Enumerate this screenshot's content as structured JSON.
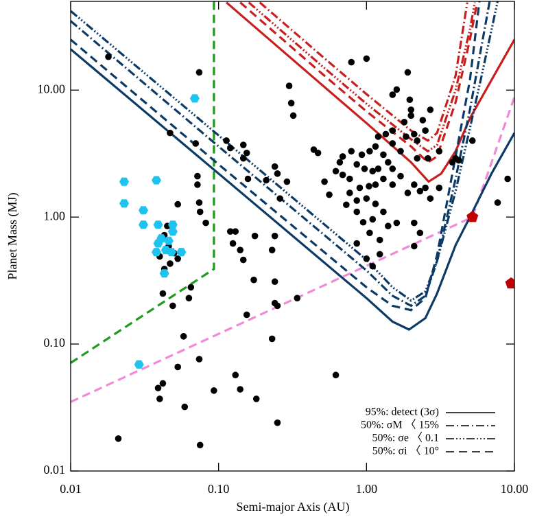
{
  "chart_data": {
    "type": "scatter",
    "x_label": "Semi-major Axis (AU)",
    "y_label": "Planet Mass (MJ)",
    "xlog": true,
    "ylog": true,
    "xlim": [
      0.01,
      10
    ],
    "ylim": [
      0.01,
      50
    ],
    "xticks": [
      0.01,
      {
        "value": 0.1,
        "label": "0.10"
      },
      {
        "value": 1,
        "label": "1.00"
      },
      {
        "value": 10,
        "label": "10.00"
      }
    ],
    "yticks": [
      0.01,
      {
        "value": 0.1,
        "label": "0.10"
      },
      {
        "value": 1,
        "label": "1.00"
      },
      {
        "value": 10,
        "label": "10.00"
      }
    ],
    "legend": "lower right",
    "series": [
      {
        "type": "line",
        "color": "#f08ad8",
        "style": "dashed",
        "x": [
          0.01,
          5.2,
          10
        ],
        "values": [
          0.035,
          1.0,
          8.8
        ]
      },
      {
        "type": "line",
        "color": "#1e9a1e",
        "style": "dashed",
        "x": [
          0.01,
          0.093,
          0.093
        ],
        "values": [
          0.071,
          0.39,
          50
        ]
      },
      {
        "type": "line",
        "color": "#c81e1e",
        "style": "solid",
        "x": [
          0.113,
          0.5,
          1,
          2,
          2.63,
          3.2,
          4,
          5,
          7,
          10
        ],
        "values": [
          49,
          11,
          5.5,
          2.7,
          1.9,
          2.2,
          3.3,
          6,
          12,
          25
        ]
      },
      {
        "type": "line",
        "color": "#c81e1e",
        "style": "dashed",
        "x": [
          0.14,
          0.5,
          1,
          2,
          2.6,
          3,
          4,
          5,
          5.6
        ],
        "values": [
          49,
          13.5,
          6.8,
          3.6,
          2.7,
          3.0,
          8,
          25,
          49
        ]
      },
      {
        "type": "line",
        "color": "#c81e1e",
        "style": "dashdotdotdot",
        "x": [
          0.16,
          0.5,
          1,
          2,
          2.6,
          3,
          4,
          5,
          5.4
        ],
        "values": [
          49,
          15.5,
          7.8,
          4.1,
          3.3,
          3.7,
          10,
          30,
          49
        ]
      },
      {
        "type": "line",
        "color": "#c81e1e",
        "style": "dashdot",
        "x": [
          0.19,
          0.5,
          1,
          2,
          2.6,
          3,
          4,
          4.8
        ],
        "values": [
          49,
          18.5,
          9.3,
          4.8,
          4.0,
          4.6,
          13,
          49
        ]
      },
      {
        "type": "line",
        "name": "95%: detect (3σ)",
        "color": "#0b3a66",
        "style": "solid",
        "x": [
          0.01,
          0.1,
          1,
          1.5,
          1.94,
          2.5,
          3,
          4,
          5,
          7,
          10
        ],
        "values": [
          21,
          2.2,
          0.23,
          0.15,
          0.13,
          0.16,
          0.25,
          0.6,
          1.0,
          2.2,
          4.6
        ]
      },
      {
        "type": "line",
        "name": "50%: σM 〈 15%",
        "color": "#0b3a66",
        "style": "dashdot",
        "x": [
          0.01,
          0.1,
          1,
          1.5,
          2,
          2.5,
          3,
          4,
          5,
          6.8
        ],
        "values": [
          35,
          3.6,
          0.38,
          0.24,
          0.2,
          0.24,
          0.45,
          2,
          7,
          50
        ]
      },
      {
        "type": "line",
        "name": "50%: σe 〈 0.1",
        "color": "#0b3a66",
        "style": "dashdotdotdot",
        "x": [
          0.01,
          0.1,
          1,
          1.5,
          2,
          2.5,
          3,
          4,
          5,
          6,
          7.7
        ],
        "values": [
          42,
          4.4,
          0.46,
          0.28,
          0.22,
          0.26,
          0.45,
          1.6,
          5,
          13,
          50
        ]
      },
      {
        "type": "line",
        "name": "50%: σi 〈 10°",
        "color": "#0b3a66",
        "style": "dashed",
        "x": [
          0.01,
          0.1,
          1,
          1.5,
          2,
          2.5,
          3,
          4,
          5,
          5.8
        ],
        "values": [
          25,
          2.6,
          0.28,
          0.2,
          0.185,
          0.23,
          0.5,
          3,
          12,
          50
        ]
      },
      {
        "type": "scatter",
        "marker": "circle",
        "color": "#000000",
        "x": [
          0.018,
          0.021,
          0.074,
          0.047,
          0.07,
          0.072,
          0.072,
          0.053,
          0.074,
          0.075,
          0.082,
          0.045,
          0.043,
          0.046,
          0.05,
          0.053,
          0.04,
          0.047,
          0.043,
          0.065,
          0.063,
          0.042,
          0.049,
          0.058,
          0.053,
          0.074,
          0.039,
          0.042,
          0.04,
          0.059,
          0.093,
          0.075,
          0.14,
          0.13,
          0.113,
          0.12,
          0.147,
          0.155,
          0.147,
          0.158,
          0.13,
          0.12,
          0.125,
          0.14,
          0.147,
          0.173,
          0.176,
          0.24,
          0.23,
          0.21,
          0.24,
          0.25,
          0.29,
          0.26,
          0.24,
          0.24,
          0.25,
          0.3,
          0.31,
          0.32,
          0.34,
          0.18,
          0.23,
          0.25,
          0.155,
          0.44,
          0.47,
          0.62,
          0.52,
          0.56,
          1.0,
          0.79,
          1.9,
          1.6,
          1.5,
          1.96,
          2.0,
          2.0,
          2.7,
          2.4,
          1.8,
          1.5,
          1.35,
          1.2,
          1.15,
          1.05,
          0.93,
          0.79,
          0.69,
          0.66,
          0.86,
          0.97,
          1.1,
          1.2,
          1.4,
          1.5,
          1.7,
          1.3,
          1.15,
          1.04,
          0.9,
          0.77,
          0.69,
          0.62,
          0.77,
          0.86,
          1.0,
          1.15,
          1.3,
          1.1,
          0.95,
          1.05,
          1.23,
          1.4,
          0.86,
          1.0,
          1.1,
          1.23,
          1.6,
          1.9,
          2.1,
          2.3,
          2.5,
          2.1,
          2.3,
          2.1,
          1.5,
          1.7,
          1.85,
          2.1,
          2.2,
          2.5,
          2.2,
          2.6,
          3.1,
          1.3,
          1.5,
          3.1,
          2.7,
          0.73,
          0.86,
          3.8,
          4.0,
          4.2,
          5.2,
          7.7,
          9.0
        ],
        "values": [
          18.3,
          0.018,
          13.8,
          4.6,
          3.8,
          2.1,
          1.8,
          1.26,
          1.3,
          1.1,
          0.9,
          0.85,
          0.72,
          0.59,
          0.52,
          0.47,
          0.49,
          0.43,
          0.39,
          0.28,
          0.23,
          0.25,
          0.2,
          0.115,
          0.066,
          0.076,
          0.045,
          0.049,
          0.037,
          0.032,
          0.043,
          0.016,
          0.044,
          0.057,
          4.0,
          3.5,
          3.7,
          3.2,
          2.9,
          2.0,
          0.77,
          0.77,
          0.62,
          0.55,
          0.46,
          0.32,
          0.71,
          0.71,
          0.55,
          1.95,
          2.5,
          2.2,
          1.9,
          1.4,
          0.31,
          0.21,
          0.2,
          10.8,
          7.9,
          6.3,
          0.23,
          0.037,
          0.11,
          0.024,
          0.17,
          3.4,
          3.2,
          0.057,
          1.9,
          1.5,
          17.7,
          16.6,
          13.8,
          10.1,
          9.2,
          8.4,
          7.0,
          6.3,
          7.0,
          5.8,
          5.6,
          4.8,
          4.5,
          4.3,
          3.6,
          3.3,
          3.1,
          3.3,
          3.0,
          2.7,
          2.6,
          2.4,
          2.3,
          2.4,
          2.7,
          2.4,
          2.1,
          2.0,
          1.8,
          1.75,
          1.7,
          2.0,
          2.15,
          2.3,
          1.55,
          1.35,
          1.4,
          1.27,
          1.1,
          0.96,
          0.91,
          0.75,
          0.66,
          0.85,
          0.62,
          0.47,
          0.41,
          0.51,
          0.9,
          1.55,
          1.8,
          1.6,
          1.7,
          0.9,
          0.75,
          0.59,
          1.8,
          3.3,
          4.3,
          4.5,
          4.0,
          4.8,
          2.9,
          2.9,
          3.3,
          3.1,
          3.8,
          1.7,
          1.4,
          1.25,
          1.1,
          2.7,
          2.9,
          2.8,
          4.0,
          1.3,
          2.0
        ]
      },
      {
        "type": "scatter",
        "marker": "hexagon",
        "color": "#1ec3f0",
        "x": [
          0.069,
          0.023,
          0.038,
          0.023,
          0.031,
          0.031,
          0.039,
          0.049,
          0.049,
          0.041,
          0.046,
          0.039,
          0.044,
          0.048,
          0.056,
          0.038,
          0.043,
          0.029
        ],
        "values": [
          8.6,
          1.9,
          1.95,
          1.28,
          1.13,
          0.87,
          0.87,
          0.87,
          0.77,
          0.68,
          0.65,
          0.62,
          0.55,
          0.53,
          0.53,
          0.53,
          0.36,
          0.069
        ]
      },
      {
        "type": "scatter",
        "marker": "pentagon",
        "color": "#c00000",
        "x": [
          5.2,
          9.5
        ],
        "values": [
          1.0,
          0.3
        ]
      }
    ]
  }
}
